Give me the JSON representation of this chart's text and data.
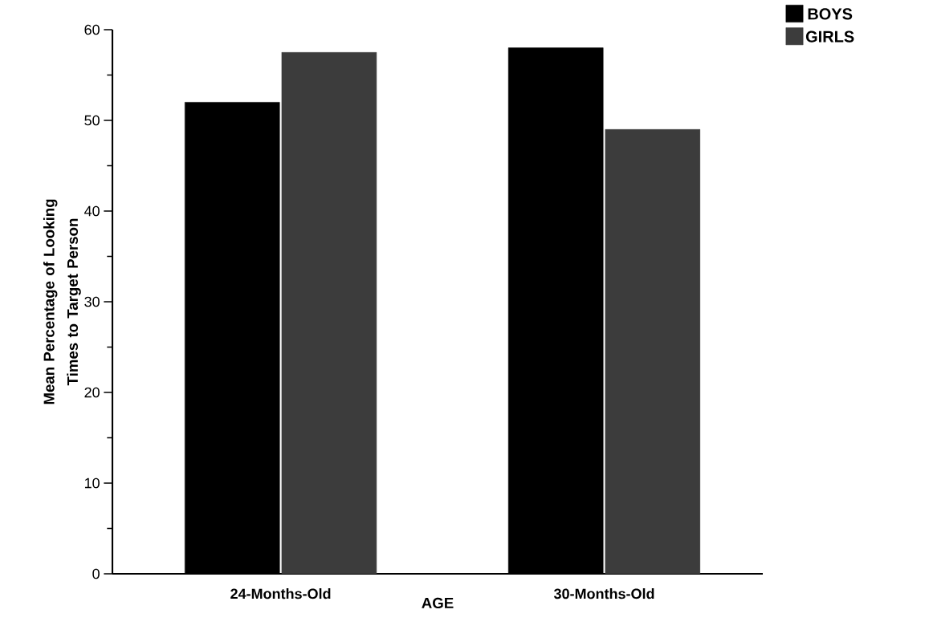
{
  "chart_data": {
    "type": "bar",
    "xlabel": "AGE",
    "ylabel": "Mean Percentage of Looking Times to Target Person",
    "categories": [
      "24-Months-Old",
      "30-Months-Old"
    ],
    "series": [
      {
        "name": "BOYS",
        "color": "#000000",
        "values": [
          52,
          58
        ]
      },
      {
        "name": "GIRLS",
        "color": "#3c3c3c",
        "values": [
          57.5,
          49
        ]
      }
    ],
    "ylim": [
      0,
      60
    ],
    "yticks": [
      0,
      10,
      20,
      30,
      40,
      50,
      60
    ],
    "legend": "top right"
  }
}
